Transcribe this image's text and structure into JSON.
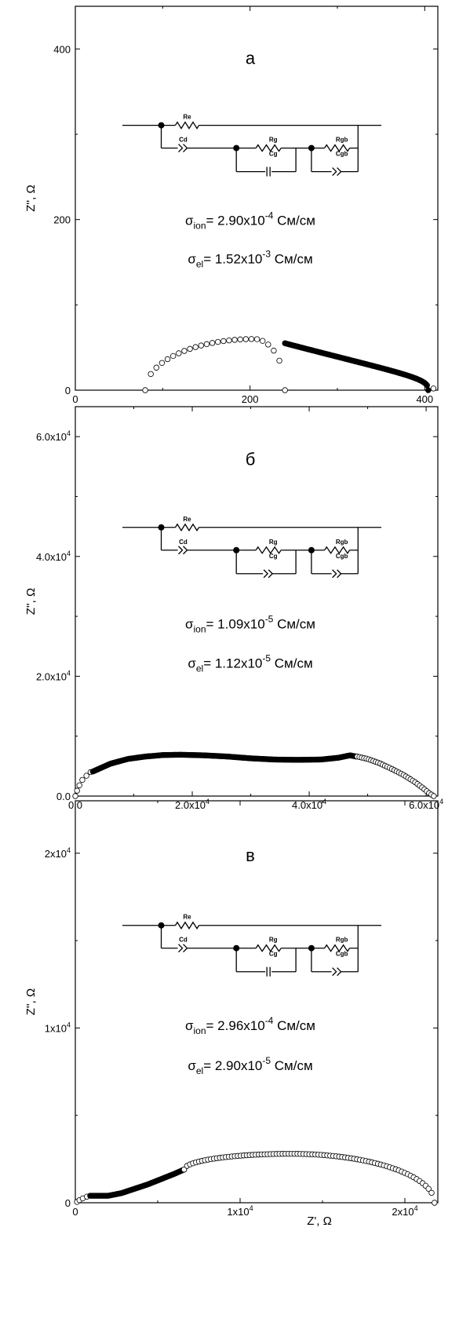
{
  "chart_data": [
    {
      "type": "scatter",
      "panel_label": "а",
      "xlabel": "",
      "ylabel": "Z'', Ω",
      "xlim": [
        0,
        415
      ],
      "ylim": [
        0,
        450
      ],
      "xticks": [
        {
          "v": 0,
          "t": "0"
        },
        {
          "v": 200,
          "t": "200"
        },
        {
          "v": 400,
          "t": "400"
        }
      ],
      "yticks": [
        {
          "v": 0,
          "t": "0"
        },
        {
          "v": 200,
          "t": "200"
        },
        {
          "v": 400,
          "t": "400"
        }
      ],
      "circuit": {
        "re": "Re",
        "cd": "Cd",
        "rg": "Rg",
        "cg": "Cg",
        "rgb": "Rgb",
        "cgb": "Cgb",
        "cg_symbol": "capacitor"
      },
      "conductivity": {
        "ion": {
          "sym": "σ",
          "sub": "ion",
          "mant": "= 2.90x10",
          "exp": "-4",
          "unit": " См/см"
        },
        "el": {
          "sym": "σ",
          "sub": "el",
          "mant": "= 1.52x10",
          "exp": "-3",
          "unit": " См/см"
        }
      },
      "series": [
        {
          "marker": "open",
          "arc": {
            "x_start": 80,
            "x_end": 240,
            "height": 60,
            "peak_x": 205,
            "n": 26
          }
        },
        {
          "marker": "filled",
          "arc": {
            "x_start": 240,
            "x_end": 404,
            "height": 55,
            "decay": 0.35,
            "n": 120
          }
        },
        {
          "marker": "open",
          "points": [
            [
              410,
              2
            ]
          ]
        }
      ]
    },
    {
      "type": "scatter",
      "panel_label": "б",
      "xlabel": "",
      "ylabel": "Z'', Ω",
      "xlim": [
        0,
        62000
      ],
      "ylim": [
        0,
        65000
      ],
      "xticks": [
        {
          "v": 0,
          "t": "0.0"
        },
        {
          "v": 20000,
          "t": "2.0x10",
          "e": "4"
        },
        {
          "v": 40000,
          "t": "4.0x10",
          "e": "4"
        },
        {
          "v": 60000,
          "t": "6.0x10",
          "e": "4"
        }
      ],
      "yticks": [
        {
          "v": 0,
          "t": "0.0"
        },
        {
          "v": 20000,
          "t": "2.0x10",
          "e": "4"
        },
        {
          "v": 40000,
          "t": "4.0x10",
          "e": "4"
        },
        {
          "v": 60000,
          "t": "6.0x10",
          "e": "4"
        }
      ],
      "circuit": {
        "re": "Re",
        "cd": "Cd",
        "rg": "Rg",
        "cg": "Cg",
        "rgb": "Rgb",
        "cgb": "Cgb",
        "cg_symbol": "cpe"
      },
      "conductivity": {
        "ion": {
          "sym": "σ",
          "sub": "ion",
          "mant": "= 1.09x10",
          "exp": "-5",
          "unit": " См/см"
        },
        "el": {
          "sym": "σ",
          "sub": "el",
          "mant": "= 1.12x10",
          "exp": "-5",
          "unit": " См/см"
        }
      },
      "series": [
        {
          "marker": "open",
          "points": [
            [
              0,
              0
            ],
            [
              300,
              900
            ],
            [
              700,
              1800
            ],
            [
              1200,
              2700
            ],
            [
              1900,
              3400
            ],
            [
              2600,
              4000
            ]
          ]
        },
        {
          "marker": "filled",
          "profile": {
            "x": [
              3000,
              6000,
              9000,
              12000,
              15000,
              18000,
              22000,
              26000,
              30000,
              34000,
              38000,
              42000,
              45000,
              47000,
              48000
            ],
            "y": [
              4100,
              5400,
              6200,
              6600,
              6850,
              6900,
              6800,
              6600,
              6300,
              6100,
              6050,
              6100,
              6400,
              6800,
              6600
            ]
          },
          "n": 240
        },
        {
          "marker": "open",
          "profile": {
            "x": [
              48200,
              50000,
              52000,
              54000,
              56000,
              58000,
              59500,
              60500,
              61300
            ],
            "y": [
              6600,
              6200,
              5500,
              4600,
              3600,
              2400,
              1300,
              500,
              0
            ]
          },
          "n": 34
        }
      ]
    },
    {
      "type": "scatter",
      "panel_label": "в",
      "xlabel": "Z', Ω",
      "ylabel": "Z'', Ω",
      "xlim": [
        0,
        22000
      ],
      "ylim": [
        0,
        23000
      ],
      "xticks": [
        {
          "v": 0,
          "t": "0"
        },
        {
          "v": 10000,
          "t": "1x10",
          "e": "4"
        },
        {
          "v": 20000,
          "t": "2x10",
          "e": "4"
        }
      ],
      "yticks": [
        {
          "v": 0,
          "t": "0"
        },
        {
          "v": 10000,
          "t": "1x10",
          "e": "4"
        },
        {
          "v": 20000,
          "t": "2x10",
          "e": "4"
        }
      ],
      "circuit": {
        "re": "Re",
        "cd": "Cd",
        "rg": "Rg",
        "cg": "Cg",
        "rgb": "Rgb",
        "cgb": "Cgb",
        "cg_symbol": "capacitor"
      },
      "conductivity": {
        "ion": {
          "sym": "σ",
          "sub": "ion",
          "mant": "= 2.96x10",
          "exp": "-4",
          "unit": " См/см"
        },
        "el": {
          "sym": "σ",
          "sub": "el",
          "mant": "= 2.90x10",
          "exp": "-5",
          "unit": " См/см"
        }
      },
      "series": [
        {
          "marker": "open",
          "points": [
            [
              100,
              50
            ],
            [
              250,
              150
            ],
            [
              450,
              250
            ],
            [
              700,
              350
            ]
          ]
        },
        {
          "marker": "filled",
          "profile": {
            "x": [
              900,
              1400,
              2000,
              2800,
              3600,
              4400,
              5200,
              6000,
              6600
            ],
            "y": [
              400,
              400,
              400,
              550,
              800,
              1050,
              1350,
              1650,
              1900
            ]
          },
          "n": 90
        },
        {
          "marker": "open",
          "arc": {
            "x_start": 6600,
            "x_end": 21800,
            "height": 2800,
            "peak_x": 13100,
            "base_start": 1900,
            "n": 85
          }
        }
      ]
    }
  ]
}
